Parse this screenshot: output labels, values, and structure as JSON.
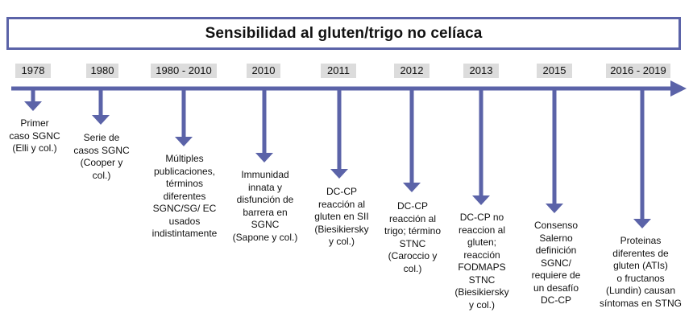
{
  "title": "Sensibilidad al gluten/trigo no celíaca",
  "colors": {
    "accent": "#5b63a8",
    "year_bg": "#dcdcdc"
  },
  "events": [
    {
      "year": "1978",
      "text": "Primer\ncaso SGNC\n(Elli y col.)"
    },
    {
      "year": "1980",
      "text": "Serie de\ncasos SGNC\n(Cooper y\ncol.)"
    },
    {
      "year": "1980 - 2010",
      "text": "Múltiples\npublicaciones,\ntérminos\ndiferentes\nSGNC/SG/ EC\nusados\nindistintamente"
    },
    {
      "year": "2010",
      "text": "Immunidad\ninnata y\ndisfunción de\nbarrera en\nSGNC\n(Sapone y col.)"
    },
    {
      "year": "2011",
      "text": "DC-CP\nreacción al\ngluten en SII\n(Biesikiersky\ny col.)"
    },
    {
      "year": "2012",
      "text": "DC-CP\nreacción al\ntrigo; término\nSTNC\n(Caroccio y\ncol.)"
    },
    {
      "year": "2013",
      "text": "DC-CP no\nreaccion al\ngluten;\nreacción\nFODMAPS\nSTNC\n(Biesikiersky\ny col.)"
    },
    {
      "year": "2015",
      "text": "Consenso\nSalerno\ndefinición\nSGNC/\nrequiere de\nun desafío\nDC-CP"
    },
    {
      "year": "2016 - 2019",
      "text": "Proteinas\ndiferentes de\ngluten (ATIs)\no fructanos\n(Lundin) causan\nsíntomas en STNG"
    }
  ]
}
